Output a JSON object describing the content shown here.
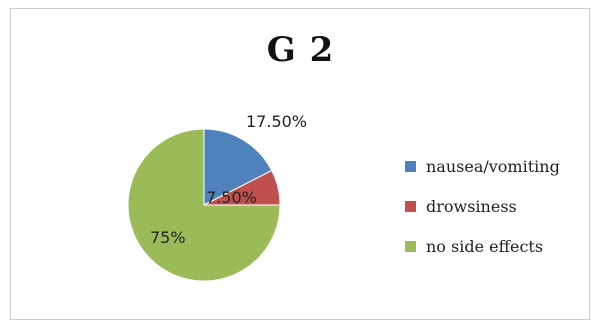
{
  "chart_data": {
    "type": "pie",
    "title": "G 2",
    "slices": [
      {
        "name": "nausea/vomiting",
        "value": 17.5,
        "label": "17.50%",
        "color": "#4f81bd"
      },
      {
        "name": "drowsiness",
        "value": 7.5,
        "label": "7.50%",
        "color": "#c0504d"
      },
      {
        "name": "no side effects",
        "value": 75,
        "label": "75%",
        "color": "#9bbb59"
      }
    ],
    "legend_position": "right"
  }
}
